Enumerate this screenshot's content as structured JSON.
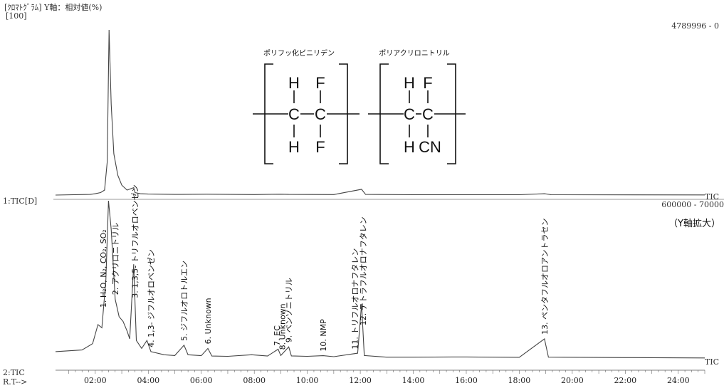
{
  "header": {
    "title": "[ｸﾛﾏﾄｸﾞﾗﾑ] Y軸：相対値(%)",
    "yscale_top": "[100]",
    "range_top": "4789996 - 0",
    "range_bottom": "600000 - 70000",
    "panel1_label": "1:TIC[D]",
    "panel2_label": "2:TIC",
    "rt_label": "R.T-->",
    "tic_top": "TIC",
    "tic_bottom": "TIC",
    "y_zoom_note": "（Y軸拡大）"
  },
  "polymers": [
    {
      "name": "ポリフッ化ビニリデン",
      "top": [
        "H",
        "F"
      ],
      "bottom": [
        "H",
        "F"
      ]
    },
    {
      "name": "ポリアクリロニトリル",
      "top": [
        "H",
        "F"
      ],
      "bottom": [
        "H",
        "CN"
      ]
    }
  ],
  "chart_data": {
    "type": "line",
    "x_axis": {
      "min": 0.5,
      "max": 25.0,
      "ticks": [
        "02:00",
        "04:00",
        "06:00",
        "08:00",
        "10:00",
        "12:00",
        "14:00",
        "16:00",
        "18:00",
        "20:00",
        "22:00",
        "24:00"
      ],
      "tick_values": [
        2,
        4,
        6,
        8,
        10,
        12,
        14,
        16,
        18,
        20,
        22,
        24
      ]
    },
    "series": [
      {
        "name": "1:TIC",
        "points": [
          [
            0.5,
            0
          ],
          [
            1.8,
            0.4
          ],
          [
            2.0,
            0.8
          ],
          [
            2.2,
            1.5
          ],
          [
            2.35,
            3
          ],
          [
            2.45,
            20
          ],
          [
            2.52,
            100
          ],
          [
            2.6,
            55
          ],
          [
            2.7,
            25
          ],
          [
            2.85,
            12
          ],
          [
            3.0,
            6
          ],
          [
            3.2,
            3
          ],
          [
            3.45,
            4.5
          ],
          [
            3.5,
            1.5
          ],
          [
            3.7,
            0.8
          ],
          [
            4.0,
            0.6
          ],
          [
            5.0,
            0.4
          ],
          [
            6.2,
            0.5
          ],
          [
            8.0,
            0.3
          ],
          [
            9.0,
            0.5
          ],
          [
            9.3,
            0.4
          ],
          [
            11.0,
            0.3
          ],
          [
            12.05,
            3.5
          ],
          [
            12.2,
            0.4
          ],
          [
            14.0,
            0.2
          ],
          [
            16.0,
            0.2
          ],
          [
            18.0,
            0.2
          ],
          [
            18.95,
            0.8
          ],
          [
            19.2,
            0.2
          ],
          [
            25.0,
            0.1
          ]
        ]
      },
      {
        "name": "2:TIC (Y軸拡大)",
        "points": [
          [
            0.5,
            5
          ],
          [
            1.5,
            6
          ],
          [
            1.9,
            10
          ],
          [
            2.1,
            22
          ],
          [
            2.25,
            20
          ],
          [
            2.4,
            50
          ],
          [
            2.5,
            100
          ],
          [
            2.6,
            82
          ],
          [
            2.75,
            38
          ],
          [
            2.9,
            27
          ],
          [
            3.05,
            24
          ],
          [
            3.2,
            18
          ],
          [
            3.3,
            13
          ],
          [
            3.45,
            60
          ],
          [
            3.55,
            12
          ],
          [
            3.75,
            7
          ],
          [
            3.95,
            12
          ],
          [
            4.1,
            5
          ],
          [
            4.6,
            3
          ],
          [
            5.0,
            2.5
          ],
          [
            5.35,
            9
          ],
          [
            5.5,
            3
          ],
          [
            6.0,
            2.4
          ],
          [
            6.25,
            7
          ],
          [
            6.4,
            2.2
          ],
          [
            7.0,
            2
          ],
          [
            7.9,
            3
          ],
          [
            8.5,
            2.2
          ],
          [
            8.9,
            6.5
          ],
          [
            9.0,
            2.5
          ],
          [
            9.3,
            8
          ],
          [
            9.4,
            2.3
          ],
          [
            10.0,
            2
          ],
          [
            10.6,
            2.4
          ],
          [
            11.0,
            1.8
          ],
          [
            11.9,
            4
          ],
          [
            12.05,
            35
          ],
          [
            12.15,
            2.5
          ],
          [
            13.0,
            1.5
          ],
          [
            14.0,
            1.5
          ],
          [
            16.0,
            1.6
          ],
          [
            18.0,
            1.4
          ],
          [
            18.95,
            13
          ],
          [
            19.1,
            1.5
          ],
          [
            22.0,
            1.2
          ],
          [
            25.0,
            1
          ]
        ]
      }
    ],
    "peak_labels": [
      {
        "text": "1. H₂O, N₂, CO₂, SO₂",
        "x": 2.3
      },
      {
        "text": "2. アクリロニトリル",
        "x": 2.75
      },
      {
        "text": "3. 1,3,5- トリフルオロベンゼン",
        "x": 3.5
      },
      {
        "text": "4. 1,3- ジフルオロベンゼン",
        "x": 4.1
      },
      {
        "text": "5. ジフルオロトルエン",
        "x": 5.35
      },
      {
        "text": "6. Unknown",
        "x": 6.25
      },
      {
        "text": "7. EC",
        "x": 8.85
      },
      {
        "text": "8. Unknown",
        "x": 9.05
      },
      {
        "text": "9. ベンゾニトリル",
        "x": 9.3
      },
      {
        "text": "10. NMP",
        "x": 10.6
      },
      {
        "text": "11. トリフルオロナフタレン",
        "x": 11.8
      },
      {
        "text": "12. テトラフルオロナフタレン",
        "x": 12.1
      },
      {
        "text": "13. ペンタフルオロアントラセン",
        "x": 18.95
      }
    ]
  }
}
